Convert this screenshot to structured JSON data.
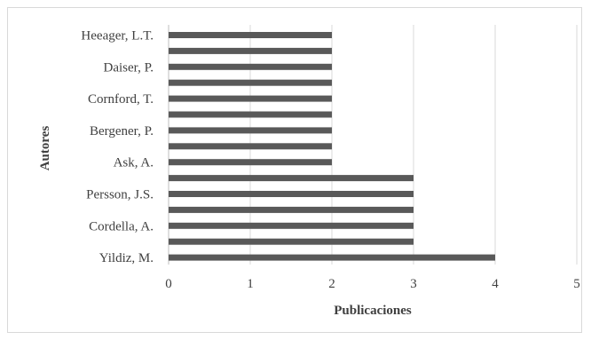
{
  "chart_data": {
    "type": "bar",
    "orientation": "horizontal",
    "title": "",
    "xlabel": "Publicaciones",
    "ylabel": "Autores",
    "xlim": [
      0,
      5
    ],
    "xticks": [
      0,
      1,
      2,
      3,
      4,
      5
    ],
    "grid": "vertical",
    "legend": "none",
    "bar_color": "#595959",
    "grid_color": "#d9d9d9",
    "categories": [
      "Yildiz, M.",
      "",
      "Cordella, A.",
      "",
      "Persson, J.S.",
      "",
      "Ask, A.",
      "",
      "Bergener, P.",
      "",
      "Cornford, T.",
      "",
      "Daiser, P.",
      "",
      "Heeager, L.T."
    ],
    "values": [
      4,
      3,
      3,
      3,
      3,
      3,
      2,
      2,
      2,
      2,
      2,
      2,
      2,
      2,
      2
    ]
  }
}
